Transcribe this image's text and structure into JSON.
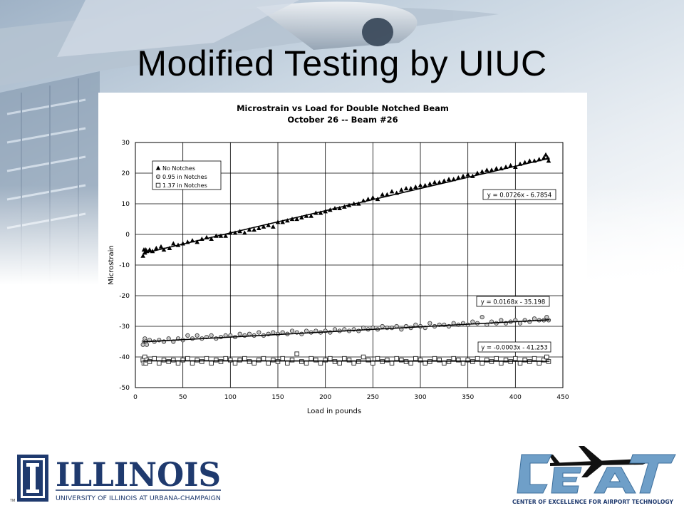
{
  "slide": {
    "title": "Modified Testing by UIUC"
  },
  "chart_data": {
    "type": "scatter",
    "title": "Microstrain vs Load for Double Notched Beam",
    "subtitle": "October 26 -- Beam #26",
    "xlabel": "Load in pounds",
    "ylabel": "Microstrain",
    "xlim": [
      0,
      450
    ],
    "ylim": [
      -50,
      30
    ],
    "xticks": [
      0,
      50,
      100,
      150,
      200,
      250,
      300,
      350,
      400,
      450
    ],
    "yticks": [
      30,
      20,
      10,
      0,
      -10,
      -20,
      -30,
      -40,
      -50
    ],
    "grid": true,
    "legend_position": "top-left",
    "series": [
      {
        "name": "No Notches",
        "marker": "triangle",
        "trendline": {
          "slope": 0.0726,
          "intercept": -6.7854,
          "label": "y = 0.0726x - 6.7854"
        },
        "x": [
          8,
          9,
          10,
          11,
          12,
          15,
          18,
          22,
          27,
          30,
          36,
          40,
          45,
          50,
          55,
          60,
          65,
          70,
          75,
          80,
          85,
          90,
          95,
          100,
          105,
          110,
          115,
          120,
          125,
          130,
          135,
          140,
          145,
          150,
          155,
          160,
          165,
          170,
          175,
          180,
          185,
          190,
          195,
          200,
          205,
          210,
          215,
          220,
          225,
          230,
          235,
          240,
          245,
          250,
          255,
          260,
          265,
          270,
          275,
          280,
          285,
          290,
          295,
          300,
          305,
          310,
          315,
          320,
          325,
          330,
          335,
          340,
          345,
          350,
          355,
          360,
          365,
          370,
          375,
          380,
          385,
          390,
          395,
          400,
          405,
          410,
          415,
          420,
          425,
          430,
          432,
          434,
          435
        ],
        "y": [
          -7,
          -5,
          -6,
          -5,
          -5.5,
          -5,
          -5.5,
          -4.5,
          -4,
          -5,
          -4.5,
          -3,
          -3.5,
          -3,
          -2.5,
          -2,
          -2.5,
          -1.5,
          -1,
          -1.5,
          -0.5,
          -0.5,
          -0.5,
          0.5,
          0.5,
          1,
          0.5,
          1.5,
          1.5,
          2,
          2.5,
          3,
          2.5,
          4,
          4,
          4.5,
          5,
          5,
          5.5,
          6,
          6,
          7,
          7,
          7.5,
          8,
          8.5,
          8.5,
          9,
          9.5,
          10,
          10,
          11,
          11.5,
          12,
          11.5,
          13,
          13,
          14,
          13.5,
          14.5,
          15,
          15,
          15.5,
          16,
          16,
          16.5,
          17,
          17,
          17.5,
          18,
          18,
          18.5,
          19,
          19.5,
          19,
          20,
          20.5,
          21,
          21,
          21.5,
          21.5,
          22,
          22.5,
          22,
          23,
          23.5,
          24,
          24,
          24.5,
          25,
          26,
          25,
          24
        ]
      },
      {
        "name": "0.95 in  Notches",
        "marker": "circle",
        "trendline": {
          "slope": 0.0168,
          "intercept": -35.198,
          "label": "y = 0.0168x - 35.198"
        },
        "x": [
          8,
          9,
          10,
          11,
          12,
          15,
          20,
          25,
          30,
          35,
          40,
          45,
          50,
          55,
          60,
          65,
          70,
          75,
          80,
          85,
          90,
          95,
          100,
          105,
          110,
          115,
          120,
          125,
          130,
          135,
          140,
          145,
          150,
          155,
          160,
          165,
          170,
          175,
          180,
          185,
          190,
          195,
          200,
          205,
          210,
          215,
          220,
          225,
          230,
          235,
          240,
          245,
          250,
          255,
          260,
          265,
          270,
          275,
          280,
          285,
          290,
          295,
          300,
          305,
          310,
          315,
          320,
          325,
          330,
          335,
          340,
          345,
          350,
          355,
          360,
          365,
          370,
          375,
          380,
          385,
          390,
          395,
          400,
          405,
          410,
          415,
          420,
          425,
          430,
          433,
          435
        ],
        "y": [
          -36,
          -35,
          -34,
          -35,
          -36,
          -34.5,
          -35,
          -34.5,
          -35,
          -34,
          -35,
          -34,
          -34.5,
          -33,
          -34,
          -33,
          -34,
          -33.5,
          -33,
          -34,
          -33.5,
          -33,
          -33,
          -33.5,
          -32.5,
          -33,
          -32.5,
          -33,
          -32,
          -33,
          -32.5,
          -32,
          -32.5,
          -32,
          -32.5,
          -31.5,
          -32,
          -32.5,
          -31.5,
          -32,
          -31.5,
          -32,
          -31.5,
          -32,
          -31,
          -31.5,
          -31,
          -31.5,
          -31,
          -31.5,
          -30.5,
          -31,
          -30.5,
          -31,
          -30,
          -30.5,
          -30.5,
          -30,
          -31,
          -30,
          -30.5,
          -29.5,
          -30,
          -30.5,
          -29,
          -30,
          -29.5,
          -29.5,
          -30,
          -29,
          -29.5,
          -29,
          -29.5,
          -28.5,
          -29,
          -27,
          -29.5,
          -28.5,
          -29,
          -28,
          -29,
          -28.5,
          -28,
          -29,
          -28,
          -28.5,
          -27.5,
          -28,
          -28,
          -27,
          -28
        ]
      },
      {
        "name": "1.37 in Notches",
        "marker": "square",
        "trendline": {
          "slope": -0.0003,
          "intercept": -41.253,
          "label": "y = -0.0003x - 41.253"
        },
        "x": [
          8,
          9,
          10,
          11,
          12,
          15,
          20,
          25,
          30,
          35,
          40,
          45,
          50,
          55,
          60,
          65,
          70,
          75,
          80,
          85,
          90,
          95,
          100,
          105,
          110,
          115,
          120,
          125,
          130,
          135,
          140,
          145,
          150,
          155,
          160,
          165,
          170,
          175,
          180,
          185,
          190,
          195,
          200,
          205,
          210,
          215,
          220,
          225,
          230,
          235,
          240,
          245,
          250,
          255,
          260,
          265,
          270,
          275,
          280,
          285,
          290,
          295,
          300,
          305,
          310,
          315,
          320,
          325,
          330,
          335,
          340,
          345,
          350,
          355,
          360,
          365,
          370,
          375,
          380,
          385,
          390,
          395,
          400,
          405,
          410,
          415,
          420,
          425,
          430,
          433,
          435
        ],
        "y": [
          -41,
          -42,
          -40,
          -42,
          -41,
          -41.5,
          -40.5,
          -42,
          -41,
          -41.5,
          -41,
          -42,
          -41,
          -40.5,
          -42,
          -41,
          -41.5,
          -40.5,
          -42,
          -41,
          -41.5,
          -40.5,
          -41,
          -42,
          -41,
          -40.5,
          -41.5,
          -42,
          -41,
          -40.5,
          -42,
          -41,
          -41.5,
          -40.5,
          -42,
          -41,
          -39,
          -41.5,
          -42,
          -40.5,
          -41,
          -42,
          -41,
          -40.5,
          -41.5,
          -42,
          -40.5,
          -41,
          -42,
          -41.5,
          -40,
          -41,
          -42,
          -40.5,
          -41.5,
          -41,
          -42,
          -40.5,
          -41,
          -41.5,
          -42,
          -40.5,
          -41,
          -42,
          -41.5,
          -40.5,
          -41,
          -42,
          -41.5,
          -40.5,
          -41,
          -42,
          -41,
          -41.5,
          -40.5,
          -42,
          -41,
          -41.5,
          -40.5,
          -42,
          -41,
          -41.5,
          -40.5,
          -42,
          -41,
          -41.5,
          -40.5,
          -42,
          -41,
          -40,
          -41.5
        ]
      }
    ]
  },
  "logos": {
    "left_wordmark": "ILLINOIS",
    "left_subtitle": "UNIVERSITY OF ILLINOIS AT URBANA-CHAMPAIGN",
    "left_tm": "TM",
    "right_subtitle": "CENTER OF EXCELLENCE FOR AIRPORT TECHNOLOGY",
    "brand_blue": "#1f3a6e",
    "ceat_blue": "#6f9fc8"
  }
}
